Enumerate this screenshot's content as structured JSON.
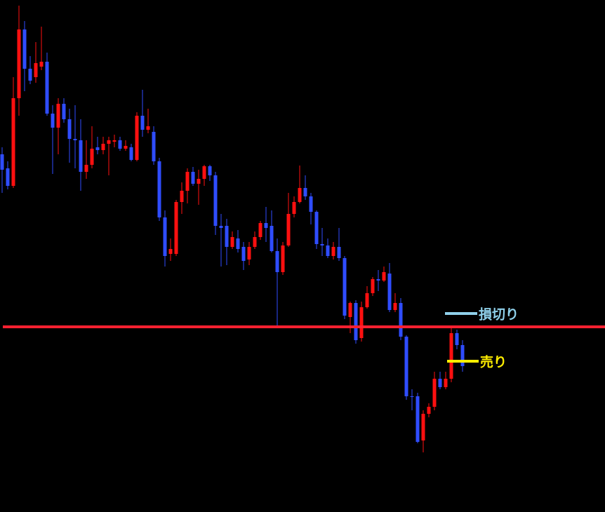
{
  "chart_data": {
    "type": "candlestick",
    "up_color": "#ff1010",
    "down_color": "#2f4dff",
    "ylim": [
      -730,
      0
    ],
    "open": [
      -220,
      -240,
      -265,
      -140,
      -42,
      -98,
      -110,
      -95,
      -88,
      -162,
      -182,
      -148,
      -170,
      -198,
      -200,
      -245,
      -235,
      -210,
      -214,
      -205,
      -202,
      -200,
      -212,
      -210,
      -228,
      -165,
      -185,
      -188,
      -230,
      -310,
      -362,
      -362,
      -288,
      -272,
      -245,
      -262,
      -255,
      -237,
      -250,
      -322,
      -322,
      -352,
      -340,
      -352,
      -370,
      -352,
      -338,
      -318,
      -322,
      -358,
      -388,
      -350,
      -305,
      -288,
      -268,
      -280,
      -302,
      -348,
      -350,
      -365,
      -352,
      -368,
      -452,
      -432,
      -482,
      -438,
      -418,
      -398,
      -400,
      -390,
      -442,
      -432,
      -480,
      -565,
      -565,
      -628,
      -590,
      -580,
      -540,
      -552,
      -540,
      -475,
      -492
    ],
    "high": [
      -210,
      -230,
      -110,
      -8,
      -30,
      -80,
      -60,
      -38,
      -75,
      -150,
      -140,
      -140,
      -155,
      -150,
      -170,
      -200,
      -180,
      -195,
      -195,
      -195,
      -192,
      -195,
      -200,
      -205,
      -160,
      -128,
      -155,
      -180,
      -225,
      -300,
      -340,
      -285,
      -260,
      -240,
      -238,
      -242,
      -235,
      -235,
      -245,
      -305,
      -312,
      -330,
      -328,
      -345,
      -345,
      -330,
      -315,
      -295,
      -300,
      -340,
      -345,
      -275,
      -280,
      -236,
      -250,
      -275,
      -300,
      -325,
      -340,
      -345,
      -325,
      -365,
      -430,
      -428,
      -430,
      -408,
      -395,
      -385,
      -380,
      -375,
      -418,
      -425,
      -478,
      -555,
      -560,
      -585,
      -575,
      -530,
      -530,
      -530,
      -465,
      -470,
      -485
    ],
    "low": [
      -275,
      -270,
      -268,
      -165,
      -130,
      -120,
      -118,
      -100,
      -165,
      -248,
      -220,
      -175,
      -232,
      -240,
      -272,
      -255,
      -240,
      -220,
      -220,
      -250,
      -210,
      -215,
      -215,
      -230,
      -230,
      -195,
      -190,
      -235,
      -315,
      -380,
      -372,
      -365,
      -305,
      -290,
      -265,
      -292,
      -265,
      -258,
      -335,
      -380,
      -378,
      -355,
      -360,
      -385,
      -378,
      -355,
      -342,
      -345,
      -360,
      -465,
      -392,
      -352,
      -310,
      -290,
      -285,
      -320,
      -355,
      -365,
      -368,
      -370,
      -372,
      -455,
      -475,
      -490,
      -487,
      -440,
      -422,
      -415,
      -402,
      -445,
      -445,
      -485,
      -570,
      -585,
      -632,
      -645,
      -595,
      -585,
      -555,
      -555,
      -545,
      -498,
      -530
    ],
    "close": [
      -242,
      -265,
      -140,
      -42,
      -98,
      -115,
      -90,
      -88,
      -162,
      -182,
      -148,
      -170,
      -198,
      -200,
      -245,
      -235,
      -212,
      -214,
      -205,
      -200,
      -200,
      -212,
      -208,
      -228,
      -165,
      -185,
      -180,
      -230,
      -310,
      -365,
      -355,
      -288,
      -272,
      -245,
      -262,
      -255,
      -237,
      -250,
      -322,
      -325,
      -352,
      -338,
      -355,
      -372,
      -352,
      -338,
      -318,
      -325,
      -358,
      -388,
      -350,
      -305,
      -288,
      -268,
      -280,
      -302,
      -348,
      -350,
      -365,
      -352,
      -368,
      -450,
      -432,
      -485,
      -438,
      -418,
      -398,
      -400,
      -388,
      -442,
      -432,
      -480,
      -565,
      -565,
      -630,
      -590,
      -580,
      -540,
      -552,
      -540,
      -475,
      -492,
      -522
    ],
    "hlines": [
      {
        "value": -466,
        "color": "#ff2030"
      }
    ],
    "annotations": [
      {
        "label": "損切り",
        "value": -447,
        "color": "#8fd0ea"
      },
      {
        "label": "売り",
        "value": -515,
        "color": "#ffee00"
      }
    ]
  }
}
